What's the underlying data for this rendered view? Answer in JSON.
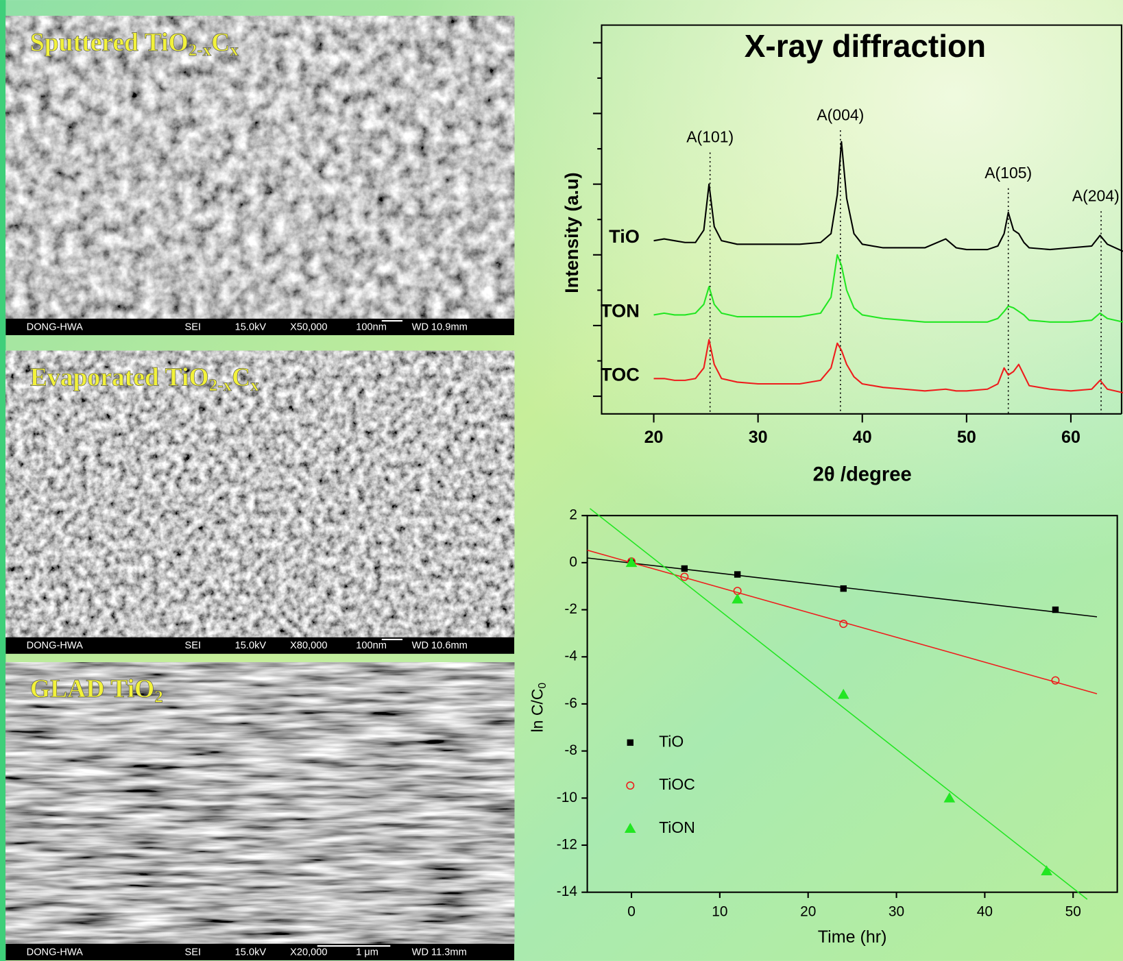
{
  "sem_panels": [
    {
      "caption": [
        "Sputtered TiO",
        "2-x",
        "C",
        "x"
      ],
      "info": [
        "DONG-HWA",
        "SEI",
        "15.0kV",
        "X50,000",
        "100nm",
        "WD 10.9mm"
      ]
    },
    {
      "caption": [
        "Evaporated TiO",
        "2-x",
        "C",
        "x"
      ],
      "info": [
        "DONG-HWA",
        "SEI",
        "15.0kV",
        "X80,000",
        "100nm",
        "WD 10.6mm"
      ]
    },
    {
      "caption": [
        "GLAD TiO",
        "2"
      ],
      "info": [
        "DONG-HWA",
        "SEI",
        "15.0kV",
        "X20,000",
        "1 μm",
        "WD 11.3mm"
      ]
    }
  ],
  "chart_data": [
    {
      "type": "line",
      "title": "X-ray diffraction",
      "xlabel": "2θ /degree",
      "ylabel": "Intensity (a.u)",
      "x": [
        20,
        21,
        22,
        23,
        24,
        24.8,
        25.3,
        25.8,
        26.5,
        28,
        30,
        32,
        34,
        36,
        37,
        37.6,
        38,
        38.5,
        39.2,
        40,
        42,
        44,
        46,
        48,
        49,
        50,
        52,
        53,
        53.6,
        54,
        54.5,
        55,
        55.5,
        56,
        58,
        60,
        62,
        62.8,
        63.5,
        65
      ],
      "series": [
        {
          "name": "TiO",
          "color": "#000000",
          "values": [
            4.4,
            4.45,
            4.4,
            4.35,
            4.35,
            4.7,
            6.0,
            4.8,
            4.4,
            4.3,
            4.3,
            4.3,
            4.3,
            4.35,
            4.6,
            5.7,
            7.2,
            5.6,
            4.6,
            4.3,
            4.2,
            4.2,
            4.2,
            4.45,
            4.2,
            4.15,
            4.15,
            4.25,
            4.6,
            5.2,
            4.7,
            4.6,
            4.35,
            4.2,
            4.15,
            4.2,
            4.25,
            4.55,
            4.3,
            4.1
          ]
        },
        {
          "name": "TON",
          "color": "#22e622",
          "values": [
            2.3,
            2.35,
            2.3,
            2.3,
            2.35,
            2.6,
            3.1,
            2.6,
            2.35,
            2.25,
            2.25,
            2.25,
            2.25,
            2.35,
            2.8,
            4.0,
            3.7,
            3.0,
            2.5,
            2.3,
            2.2,
            2.15,
            2.1,
            2.1,
            2.1,
            2.1,
            2.1,
            2.2,
            2.4,
            2.55,
            2.5,
            2.4,
            2.3,
            2.15,
            2.1,
            2.1,
            2.15,
            2.35,
            2.2,
            2.1
          ]
        },
        {
          "name": "TOC",
          "color": "#ee1c1c",
          "values": [
            0.5,
            0.5,
            0.45,
            0.45,
            0.5,
            0.8,
            1.6,
            0.9,
            0.5,
            0.4,
            0.35,
            0.35,
            0.35,
            0.45,
            0.8,
            1.5,
            1.3,
            0.9,
            0.55,
            0.35,
            0.25,
            0.2,
            0.15,
            0.2,
            0.15,
            0.15,
            0.2,
            0.35,
            0.8,
            0.6,
            0.7,
            0.9,
            0.6,
            0.3,
            0.2,
            0.15,
            0.2,
            0.45,
            0.2,
            0.1
          ]
        }
      ],
      "annotations": [
        {
          "text": "A(101)",
          "x": 25.4
        },
        {
          "text": "A(004)",
          "x": 37.9
        },
        {
          "text": "A(105)",
          "x": 54
        },
        {
          "text": "A(204)",
          "x": 62.9
        }
      ],
      "xlim": [
        15,
        65
      ],
      "ylim": [
        -0.5,
        10.5
      ],
      "xticks": [
        20,
        30,
        40,
        50,
        60
      ],
      "yticks": [
        0,
        1,
        2,
        3,
        4,
        5,
        6,
        7,
        8,
        9,
        10
      ]
    },
    {
      "type": "scatter",
      "xlabel": "Time (hr)",
      "ylabel": [
        "ln C/C",
        "0"
      ],
      "xlim": [
        -5,
        55
      ],
      "ylim": [
        -14,
        2
      ],
      "xticks": [
        0,
        10,
        20,
        30,
        40,
        50
      ],
      "yticks": [
        -14,
        -12,
        -10,
        -8,
        -6,
        -4,
        -2,
        0,
        2
      ],
      "legend": "left",
      "series": [
        {
          "name": "TiO",
          "color": "#000000",
          "marker": "square",
          "x": [
            0,
            6,
            12,
            24,
            48
          ],
          "values": [
            0,
            -0.25,
            -0.5,
            -1.1,
            -2.0
          ],
          "fit": {
            "x": [
              -5,
              52.7
            ],
            "values": [
              0.2,
              -2.3
            ]
          }
        },
        {
          "name": "TiOC",
          "color": "#ee1c1c",
          "marker": "circle-open",
          "x": [
            0,
            6,
            12,
            24,
            48
          ],
          "values": [
            0.05,
            -0.6,
            -1.2,
            -2.6,
            -5.0
          ],
          "fit": {
            "x": [
              -5,
              52.7
            ],
            "values": [
              0.53,
              -5.57
            ]
          }
        },
        {
          "name": "TiON",
          "color": "#22e622",
          "marker": "triangle",
          "x": [
            0,
            12,
            24,
            36,
            47
          ],
          "values": [
            0,
            -1.55,
            -5.6,
            -10,
            -13.1
          ],
          "fit": {
            "x": [
              -4.7,
              51.6
            ],
            "values": [
              2.3,
              -14.3
            ]
          }
        }
      ]
    }
  ]
}
